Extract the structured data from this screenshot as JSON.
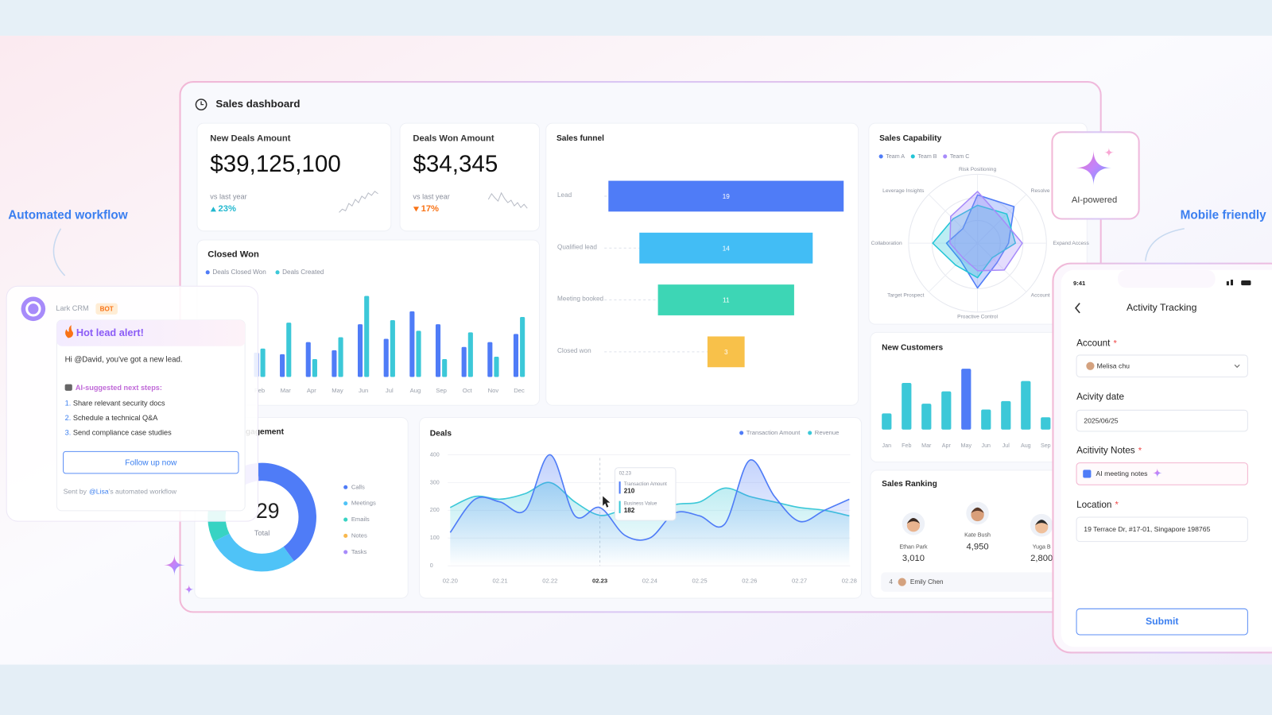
{
  "callouts": {
    "workflow": "Automated workflow",
    "mobile": "Mobile friendly"
  },
  "dashboard": {
    "title": "Sales dashboard",
    "kpis": [
      {
        "title": "New Deals Amount",
        "value": "$39,125,100",
        "compare": "vs last year",
        "change": "23%",
        "direction": "up",
        "color": "#22b8cf"
      },
      {
        "title": "Deals Won Amount",
        "value": "$34,345",
        "compare": "vs last year",
        "change": "17%",
        "direction": "down",
        "color": "#f97316"
      }
    ],
    "closed_won": {
      "type": "bar",
      "title": "Closed Won",
      "categories": [
        "Feb",
        "Mar",
        "Apr",
        "May",
        "Jun",
        "Jul",
        "Aug",
        "Sep",
        "Oct",
        "Nov",
        "Dec"
      ],
      "series": [
        {
          "name": "Deals Closed Won",
          "color": "#4f7cf7",
          "values": [
            30,
            28,
            43,
            33,
            65,
            47,
            81,
            65,
            37,
            43,
            53
          ]
        },
        {
          "name": "Deals Created",
          "color": "#3cc8d8",
          "values": [
            35,
            67,
            22,
            49,
            100,
            70,
            57,
            22,
            55,
            25,
            74
          ]
        }
      ],
      "ylim": [
        0,
        100
      ]
    },
    "funnel": {
      "type": "funnel",
      "title": "Sales funnel",
      "categories": [
        "Lead",
        "Qualified lead",
        "Meeting booked",
        "Closed won"
      ],
      "values": [
        19,
        14,
        11,
        3
      ],
      "colors": [
        "#4f7cf7",
        "#42bdf5",
        "#3dd6b5",
        "#f8c14a"
      ]
    },
    "capability": {
      "type": "radar",
      "title": "Sales Capability",
      "categories": [
        "Risk Positioning",
        "Resolve C",
        "Expand Access",
        "Account",
        "Proactive Control",
        "Target Prospect",
        "Collaboration",
        "Leverage Insights"
      ],
      "series": [
        {
          "name": "Team A",
          "color": "#4f7cf7",
          "values": [
            70,
            75,
            45,
            40,
            65,
            35,
            45,
            30
          ]
        },
        {
          "name": "Team B",
          "color": "#22c5d6",
          "values": [
            55,
            60,
            55,
            30,
            50,
            45,
            65,
            50
          ]
        },
        {
          "name": "Team C",
          "color": "#a78bfa",
          "values": [
            75,
            50,
            65,
            55,
            40,
            30,
            40,
            55
          ]
        }
      ],
      "rlim": [
        0,
        100
      ]
    },
    "new_customers": {
      "type": "bar",
      "title": "New Customers",
      "categories": [
        "Jan",
        "Feb",
        "Mar",
        "Apr",
        "May",
        "Jun",
        "Jul",
        "Aug",
        "Sep"
      ],
      "values": [
        25,
        72,
        40,
        59,
        94,
        31,
        44,
        75,
        19
      ],
      "colors": [
        "#3cc8d8",
        "#3cc8d8",
        "#3cc8d8",
        "#3cc8d8",
        "#4f7cf7",
        "#3cc8d8",
        "#3cc8d8",
        "#3cc8d8",
        "#3cc8d8"
      ],
      "ylim": [
        0,
        100
      ]
    },
    "ranking": {
      "title": "Sales Ranking",
      "top": [
        {
          "name": "Ethan Park",
          "value": "3,010"
        },
        {
          "name": "Kate Bush",
          "value": "4,950"
        },
        {
          "name": "Yuga B",
          "value": "2,800"
        }
      ],
      "rows": [
        {
          "rank": "4",
          "name": "Emily Chen"
        }
      ]
    },
    "engagement": {
      "type": "donut",
      "title": "Engagement",
      "total": "29",
      "total_label": "Total",
      "categories": [
        "Calls",
        "Meetings",
        "Emails",
        "Notes",
        "Tasks"
      ],
      "values": [
        12,
        8,
        4,
        3,
        2
      ],
      "colors": [
        "#4f7cf7",
        "#4fc3f7",
        "#38d3c3",
        "#f8b84e",
        "#a78bfa"
      ]
    },
    "deals": {
      "type": "line",
      "title": "Deals",
      "categories": [
        "02.20",
        null,
        "02.21",
        null,
        "02.22",
        null,
        "02.23",
        null,
        "02.24",
        null,
        "02.25",
        null,
        "02.26",
        null,
        "02.27",
        null,
        "02.28"
      ],
      "series": [
        {
          "name": "Transaction Amount",
          "color": "#4f7cf7",
          "values": [
            120,
            240,
            230,
            200,
            400,
            180,
            210,
            110,
            100,
            190,
            180,
            150,
            380,
            250,
            160,
            200,
            240
          ]
        },
        {
          "name": "Revenue",
          "color": "#3cc8d8",
          "values": [
            210,
            250,
            240,
            260,
            300,
            230,
            182,
            200,
            180,
            220,
            230,
            280,
            250,
            230,
            210,
            200,
            180
          ]
        }
      ],
      "ylim": [
        0,
        400
      ],
      "yticks": [
        0,
        100,
        200,
        300,
        400
      ],
      "tooltip": {
        "labels": [
          "Transaction Amount",
          "Business Value"
        ]
      }
    }
  },
  "bot": {
    "app": "Lark CRM",
    "badge": "BOT",
    "alert": "Hot lead alert!",
    "greeting": "Hi @David, you've got a new lead.",
    "steps_title": "AI-suggested next steps:",
    "steps": [
      {
        "n": "1.",
        "text": "Share relevant security docs"
      },
      {
        "n": "2.",
        "text": "Schedule a technical Q&A"
      },
      {
        "n": "3.",
        "text": "Send compliance case studies"
      }
    ],
    "button": "Follow up now",
    "footer": {
      "prefix": "Sent by",
      "mention": "@Lisa",
      "suffix": "'s automated workflow"
    }
  },
  "ai_badge": "AI-powered",
  "phone": {
    "time": "9:41",
    "title": "Activity Tracking",
    "required": "*",
    "fields": [
      {
        "label": "Account",
        "value": "Melisa chu",
        "required": true
      },
      {
        "label": "Acivity date",
        "value": "2025/06/25",
        "required": false
      },
      {
        "label": "Acitivity Notes",
        "value": "AI meeting notes",
        "required": true
      },
      {
        "label": "Location",
        "value": "19 Terrace Dr, #17-01, Singapore 198765",
        "required": true
      }
    ],
    "submit": "Submit"
  }
}
